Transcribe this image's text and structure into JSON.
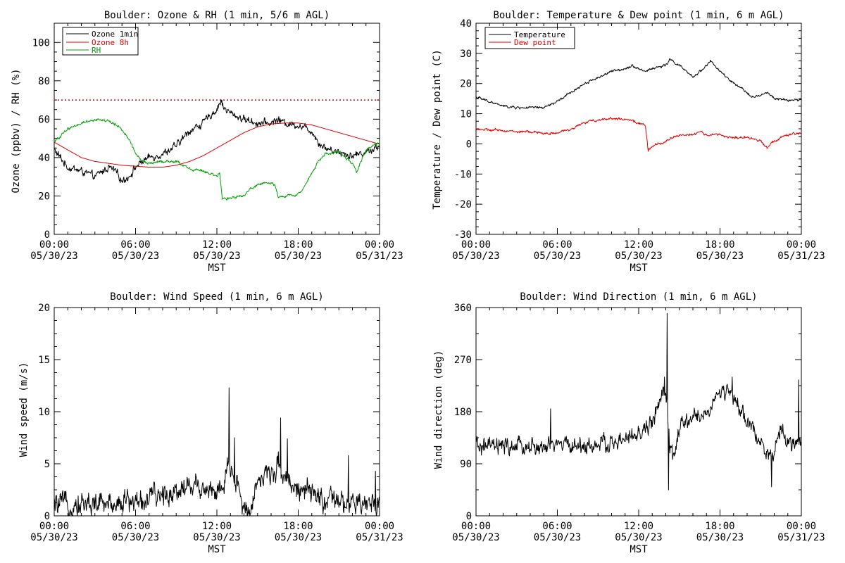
{
  "x_tick_labels": [
    {
      "time": "00:00",
      "date": "05/30/23"
    },
    {
      "time": "06:00",
      "date": "05/30/23"
    },
    {
      "time": "12:00",
      "date": "05/30/23"
    },
    {
      "time": "18:00",
      "date": "05/30/23"
    },
    {
      "time": "00:00",
      "date": "05/31/23"
    }
  ],
  "x_axis_label": "MST",
  "chart_data": [
    {
      "id": "ozone_rh",
      "type": "line",
      "title": "Boulder: Ozone & RH (1 min, 5/6 m AGL)",
      "ylabel": "Ozone (ppbv) / RH (%)",
      "xlabel": "MST",
      "xlim_hours": [
        0,
        24
      ],
      "ylim": [
        0,
        110
      ],
      "yticks": [
        0,
        20,
        40,
        60,
        80,
        100
      ],
      "legend_position": "top-left",
      "reference_lines": [
        {
          "y": 70,
          "color": "#e00000",
          "style": "dotted"
        }
      ],
      "series": [
        {
          "name": "Ozone 1min",
          "color": "#000000",
          "noise": 1.6,
          "points": [
            [
              0,
              44
            ],
            [
              1,
              35
            ],
            [
              2,
              33
            ],
            [
              3,
              30
            ],
            [
              4,
              35
            ],
            [
              4.5,
              33
            ],
            [
              5,
              28
            ],
            [
              5.5,
              30
            ],
            [
              6,
              35
            ],
            [
              6.5,
              38
            ],
            [
              7,
              40
            ],
            [
              8,
              42
            ],
            [
              9,
              46
            ],
            [
              10,
              54
            ],
            [
              11,
              58
            ],
            [
              11.5,
              62
            ],
            [
              12,
              65
            ],
            [
              12.3,
              70
            ],
            [
              12.5,
              66
            ],
            [
              13,
              63
            ],
            [
              14,
              60
            ],
            [
              15,
              58
            ],
            [
              16,
              58
            ],
            [
              16.5,
              60
            ],
            [
              17,
              58
            ],
            [
              18,
              57
            ],
            [
              19,
              54
            ],
            [
              19.5,
              48
            ],
            [
              20,
              45
            ],
            [
              21,
              43
            ],
            [
              22,
              41
            ],
            [
              23,
              43
            ],
            [
              24,
              46
            ]
          ]
        },
        {
          "name": "Ozone 8h",
          "color": "#e00000",
          "noise": 0,
          "points": [
            [
              0,
              48
            ],
            [
              1,
              44
            ],
            [
              2,
              40
            ],
            [
              3,
              38
            ],
            [
              4,
              37
            ],
            [
              5,
              36
            ],
            [
              6,
              35.5
            ],
            [
              7,
              35
            ],
            [
              8,
              35
            ],
            [
              9,
              36
            ],
            [
              10,
              38
            ],
            [
              11,
              41
            ],
            [
              12,
              45
            ],
            [
              13,
              49
            ],
            [
              14,
              53
            ],
            [
              15,
              56
            ],
            [
              16,
              57.5
            ],
            [
              17,
              58
            ],
            [
              18,
              58
            ],
            [
              19,
              57
            ],
            [
              20,
              55
            ],
            [
              21,
              53
            ],
            [
              22,
              51
            ],
            [
              23,
              49
            ],
            [
              24,
              47
            ]
          ]
        },
        {
          "name": "RH",
          "color": "#00a000",
          "noise": 0.6,
          "points": [
            [
              0,
              48
            ],
            [
              1,
              55
            ],
            [
              2,
              58
            ],
            [
              3,
              60
            ],
            [
              4,
              59
            ],
            [
              4.8,
              56
            ],
            [
              5.5,
              50
            ],
            [
              6,
              42
            ],
            [
              6.5,
              38
            ],
            [
              7,
              37
            ],
            [
              8,
              38
            ],
            [
              9,
              38
            ],
            [
              9.5,
              36
            ],
            [
              10,
              34
            ],
            [
              11,
              33
            ],
            [
              12,
              30
            ],
            [
              12.2,
              32
            ],
            [
              12.4,
              18
            ],
            [
              13,
              19
            ],
            [
              14,
              20
            ],
            [
              14.5,
              24
            ],
            [
              15,
              26
            ],
            [
              16,
              27
            ],
            [
              16.3,
              25
            ],
            [
              16.5,
              20
            ],
            [
              17,
              20
            ],
            [
              18,
              21
            ],
            [
              18.5,
              25
            ],
            [
              19,
              32
            ],
            [
              19.5,
              38
            ],
            [
              20,
              42
            ],
            [
              21,
              43
            ],
            [
              21.5,
              40
            ],
            [
              22,
              37
            ],
            [
              22.3,
              32
            ],
            [
              22.6,
              38
            ],
            [
              23,
              44
            ],
            [
              24,
              48
            ]
          ]
        }
      ]
    },
    {
      "id": "temp_dew",
      "type": "line",
      "title": "Boulder: Temperature & Dew point (1 min, 6 m AGL)",
      "ylabel": "Temperature / Dew point (C)",
      "xlabel": "MST",
      "xlim_hours": [
        0,
        24
      ],
      "ylim": [
        -30,
        40
      ],
      "yticks": [
        -30,
        -20,
        -10,
        0,
        10,
        20,
        30,
        40
      ],
      "legend_position": "top-left",
      "series": [
        {
          "name": "Temperature",
          "color": "#000000",
          "noise": 0.35,
          "points": [
            [
              0,
              15.5
            ],
            [
              1,
              14
            ],
            [
              2,
              12.5
            ],
            [
              3,
              12
            ],
            [
              4,
              12
            ],
            [
              5,
              12
            ],
            [
              6,
              14
            ],
            [
              7,
              17
            ],
            [
              8,
              20
            ],
            [
              9,
              22
            ],
            [
              10,
              24
            ],
            [
              11,
              25
            ],
            [
              11.5,
              26
            ],
            [
              12,
              25
            ],
            [
              12.5,
              24
            ],
            [
              13,
              25
            ],
            [
              14,
              26
            ],
            [
              14.3,
              28
            ],
            [
              15,
              26
            ],
            [
              15.5,
              24
            ],
            [
              16,
              22
            ],
            [
              16.5,
              24
            ],
            [
              17,
              26
            ],
            [
              17.3,
              27.5
            ],
            [
              18,
              24
            ],
            [
              19,
              20
            ],
            [
              20,
              17
            ],
            [
              20.5,
              15.5
            ],
            [
              21,
              16
            ],
            [
              21.5,
              17
            ],
            [
              22,
              15
            ],
            [
              23,
              14.5
            ],
            [
              24,
              14.5
            ]
          ]
        },
        {
          "name": "Dew point",
          "color": "#e00000",
          "noise": 0.35,
          "points": [
            [
              0,
              5
            ],
            [
              1,
              4.5
            ],
            [
              2,
              4.5
            ],
            [
              3,
              4
            ],
            [
              4,
              4
            ],
            [
              5,
              3.5
            ],
            [
              6,
              3.5
            ],
            [
              7,
              5
            ],
            [
              8,
              7
            ],
            [
              9,
              8
            ],
            [
              10,
              8.5
            ],
            [
              11,
              8
            ],
            [
              12,
              7
            ],
            [
              12.5,
              6
            ],
            [
              12.7,
              -2
            ],
            [
              13,
              -1
            ],
            [
              14,
              1
            ],
            [
              15,
              3
            ],
            [
              16,
              3
            ],
            [
              16.5,
              4
            ],
            [
              17,
              3
            ],
            [
              18,
              3
            ],
            [
              19,
              2
            ],
            [
              20,
              2
            ],
            [
              21,
              1
            ],
            [
              21.5,
              -1
            ],
            [
              22,
              1
            ],
            [
              23,
              3
            ],
            [
              24,
              3.5
            ]
          ]
        }
      ]
    },
    {
      "id": "wind_speed",
      "type": "line",
      "title": "Boulder: Wind Speed (1 min, 6 m AGL)",
      "ylabel": "Wind speed (m/s)",
      "xlabel": "MST",
      "xlim_hours": [
        0,
        24
      ],
      "ylim": [
        0,
        20
      ],
      "yticks": [
        0,
        5,
        10,
        15,
        20
      ],
      "series": [
        {
          "name": "",
          "color": "#000000",
          "noise": 0.9,
          "floor": 0,
          "spikes": [
            [
              12.9,
              12.3
            ],
            [
              16.7,
              9.4
            ],
            [
              21.7,
              5.8
            ],
            [
              23.7,
              4.3
            ],
            [
              13.3,
              7.5
            ],
            [
              17.2,
              7.4
            ]
          ],
          "points": [
            [
              0,
              1
            ],
            [
              2,
              1.2
            ],
            [
              4,
              1.1
            ],
            [
              5,
              1.5
            ],
            [
              6,
              1.3
            ],
            [
              8,
              2
            ],
            [
              9,
              2.5
            ],
            [
              10,
              3
            ],
            [
              11,
              2.8
            ],
            [
              12,
              2.4
            ],
            [
              12.5,
              2.2
            ],
            [
              12.8,
              5
            ],
            [
              13,
              4
            ],
            [
              13.5,
              3
            ],
            [
              14,
              0.5
            ],
            [
              14.5,
              1
            ],
            [
              15,
              3.5
            ],
            [
              16,
              4
            ],
            [
              16.5,
              5
            ],
            [
              17,
              4
            ],
            [
              18,
              2.5
            ],
            [
              19,
              2
            ],
            [
              20,
              1.5
            ],
            [
              21,
              1.2
            ],
            [
              22,
              1
            ],
            [
              23,
              1
            ],
            [
              24,
              1.5
            ]
          ]
        }
      ]
    },
    {
      "id": "wind_direction",
      "type": "line",
      "title": "Boulder: Wind Direction (1 min, 6 m AGL)",
      "ylabel": "Wind direction (deg)",
      "xlabel": "MST",
      "xlim_hours": [
        0,
        24
      ],
      "ylim": [
        0,
        360
      ],
      "yticks": [
        0,
        90,
        180,
        270,
        360
      ],
      "series": [
        {
          "name": "",
          "color": "#000000",
          "noise": 12,
          "spikes": [
            [
              14.1,
              350
            ],
            [
              14.2,
              45
            ],
            [
              13.9,
              240
            ],
            [
              21.8,
              50
            ],
            [
              23.8,
              235
            ],
            [
              5.5,
              185
            ],
            [
              18.9,
              240
            ]
          ],
          "points": [
            [
              0,
              120
            ],
            [
              2,
              118
            ],
            [
              4,
              120
            ],
            [
              5,
              115
            ],
            [
              6,
              125
            ],
            [
              8,
              120
            ],
            [
              10,
              125
            ],
            [
              11,
              130
            ],
            [
              12,
              140
            ],
            [
              13,
              160
            ],
            [
              13.5,
              200
            ],
            [
              14,
              210
            ],
            [
              14.3,
              120
            ],
            [
              14.6,
              100
            ],
            [
              15,
              150
            ],
            [
              16,
              170
            ],
            [
              17,
              175
            ],
            [
              17.5,
              200
            ],
            [
              18,
              210
            ],
            [
              18.5,
              220
            ],
            [
              19,
              200
            ],
            [
              20,
              160
            ],
            [
              20.5,
              150
            ],
            [
              21,
              130
            ],
            [
              21.5,
              110
            ],
            [
              22,
              100
            ],
            [
              22.5,
              150
            ],
            [
              23,
              130
            ],
            [
              24,
              120
            ]
          ]
        }
      ]
    }
  ]
}
